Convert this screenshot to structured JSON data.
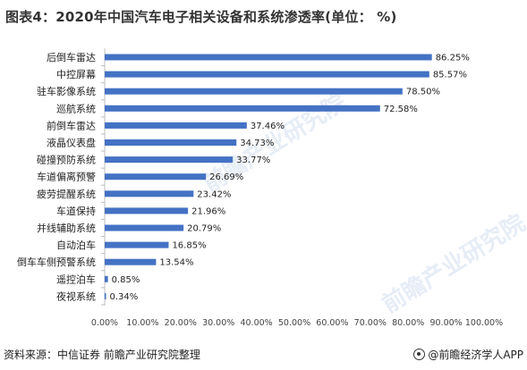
{
  "title": "图表4：2020年中国汽车电子相关设备和系统渗透率(单位： %)",
  "source": "资料来源：中信证券 前瞻产业研究院整理",
  "brand": "@前瞻经济学人APP",
  "watermark_texts": [
    "前瞻产业研究院",
    "前瞻产业研究院"
  ],
  "colors": {
    "bar": "#4472C4",
    "axis": "#bfbfbf"
  },
  "chart_data": {
    "type": "bar",
    "orientation": "horizontal",
    "title": "图表4：2020年中国汽车电子相关设备和系统渗透率(单位： %)",
    "categories": [
      "后倒车雷达",
      "中控屏幕",
      "驻车影像系统",
      "巡航系统",
      "前倒车雷达",
      "液晶仪表盘",
      "碰撞预防系统",
      "车道偏离预警",
      "疲劳提醒系统",
      "车道保持",
      "并线辅助系统",
      "自动泊车",
      "倒车车侧预警系统",
      "遥控泊车",
      "夜视系统"
    ],
    "values": [
      86.25,
      85.57,
      78.5,
      72.58,
      37.46,
      34.73,
      33.77,
      26.69,
      23.42,
      21.96,
      20.79,
      16.85,
      13.54,
      0.85,
      0.34
    ],
    "value_labels": [
      "86.25%",
      "85.57%",
      "78.50%",
      "72.58%",
      "37.46%",
      "34.73%",
      "33.77%",
      "26.69%",
      "23.42%",
      "21.96%",
      "20.79%",
      "16.85%",
      "13.54%",
      "0.85%",
      "0.34%"
    ],
    "xlim": [
      0,
      100
    ],
    "xticks": [
      "0.00%",
      "10.00%",
      "20.00%",
      "30.00%",
      "40.00%",
      "50.00%",
      "60.00%",
      "70.00%",
      "80.00%",
      "90.00%",
      "100.00%"
    ],
    "grid": false,
    "legend": "none"
  }
}
